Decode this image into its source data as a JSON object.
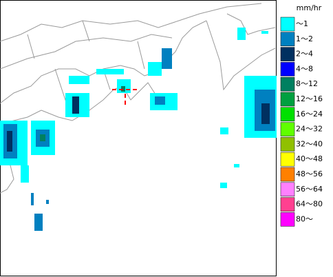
{
  "legend": {
    "unit": "mm/hr",
    "items": [
      {
        "label": "～1",
        "color": "#00ffff"
      },
      {
        "label": "1～2",
        "color": "#0080c0"
      },
      {
        "label": "2～4",
        "color": "#003060"
      },
      {
        "label": "4～8",
        "color": "#0000ff"
      },
      {
        "label": "8～12",
        "color": "#008060"
      },
      {
        "label": "12～16",
        "color": "#00a040"
      },
      {
        "label": "16～24",
        "color": "#00e000"
      },
      {
        "label": "24～32",
        "color": "#60ff00"
      },
      {
        "label": "32～40",
        "color": "#90c000"
      },
      {
        "label": "40～48",
        "color": "#ffff00"
      },
      {
        "label": "48～56",
        "color": "#ff8000"
      },
      {
        "label": "56～64",
        "color": "#ff80ff"
      },
      {
        "label": "64～80",
        "color": "#ff4090"
      },
      {
        "label": "80～",
        "color": "#ff00ff"
      }
    ]
  }
}
